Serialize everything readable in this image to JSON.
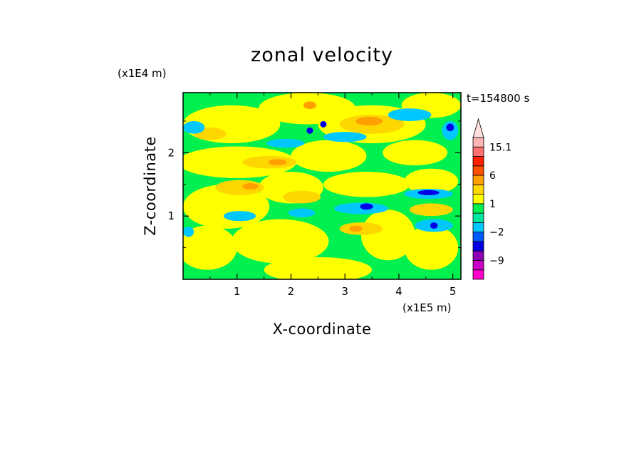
{
  "chart_data": {
    "type": "heatmap",
    "title": "zonal velocity",
    "xlabel": "X-coordinate",
    "ylabel": "Z-coordinate",
    "x_unit": "(x1E5 m)",
    "y_unit": "(x1E4 m)",
    "time_label": "t=154800 s",
    "xlim": [
      0,
      5.15
    ],
    "ylim": [
      0,
      2.95
    ],
    "x_ticks": [
      1,
      2,
      3,
      4,
      5
    ],
    "x_tick_labels": [
      "1",
      "2",
      "3",
      "4",
      "5"
    ],
    "y_ticks": [
      1,
      2
    ],
    "y_tick_labels": [
      "1",
      "2"
    ],
    "colorbar": {
      "levels": [
        -15.1,
        -12,
        -9,
        -6,
        -4,
        -2,
        -1,
        0,
        1,
        2,
        4,
        6,
        9,
        12,
        15.1
      ],
      "colors": [
        "#ff00c8",
        "#c800c8",
        "#8c00b4",
        "#0000e6",
        "#0058ff",
        "#00c8ff",
        "#00e6a0",
        "#00f050",
        "#ffff00",
        "#ffd700",
        "#ffa000",
        "#ff5000",
        "#ff2000",
        "#ff7070",
        "#ffb4b4",
        "#ffe0e0"
      ],
      "tick_labels": [
        {
          "value": 15.1,
          "label": "15.1"
        },
        {
          "value": 6,
          "label": "6"
        },
        {
          "value": 1,
          "label": "1"
        },
        {
          "value": -2,
          "label": "−2"
        },
        {
          "value": -9,
          "label": "−9"
        }
      ],
      "extend_max": true
    },
    "background_color": "#00f050",
    "regions": [
      {
        "level": "yellow",
        "x": 0.45,
        "z": 0.5,
        "rx": 0.55,
        "rz": 0.35,
        "color": "#ffff00"
      },
      {
        "level": "yellow",
        "x": 1.8,
        "z": 0.6,
        "rx": 0.9,
        "rz": 0.35,
        "color": "#ffff00"
      },
      {
        "level": "yellow",
        "x": 2.5,
        "z": 0.15,
        "rx": 1.0,
        "rz": 0.2,
        "color": "#ffff00"
      },
      {
        "level": "yellow",
        "x": 3.8,
        "z": 0.7,
        "rx": 0.5,
        "rz": 0.4,
        "color": "#ffff00"
      },
      {
        "level": "yellow",
        "x": 4.6,
        "z": 0.5,
        "rx": 0.5,
        "rz": 0.35,
        "color": "#ffff00"
      },
      {
        "level": "yellow",
        "x": 0.8,
        "z": 1.15,
        "rx": 0.8,
        "rz": 0.35,
        "color": "#ffff00"
      },
      {
        "level": "yellow",
        "x": 2.0,
        "z": 1.45,
        "rx": 0.6,
        "rz": 0.25,
        "color": "#ffff00"
      },
      {
        "level": "yellow",
        "x": 3.4,
        "z": 1.5,
        "rx": 0.8,
        "rz": 0.2,
        "color": "#ffff00"
      },
      {
        "level": "yellow",
        "x": 4.6,
        "z": 1.55,
        "rx": 0.5,
        "rz": 0.2,
        "color": "#ffff00"
      },
      {
        "level": "yellow",
        "x": 1.0,
        "z": 1.85,
        "rx": 1.1,
        "rz": 0.25,
        "color": "#ffff00"
      },
      {
        "level": "yellow",
        "x": 2.7,
        "z": 1.95,
        "rx": 0.7,
        "rz": 0.25,
        "color": "#ffff00"
      },
      {
        "level": "yellow",
        "x": 4.3,
        "z": 2.0,
        "rx": 0.6,
        "rz": 0.2,
        "color": "#ffff00"
      },
      {
        "level": "yellow",
        "x": 0.9,
        "z": 2.45,
        "rx": 0.9,
        "rz": 0.3,
        "color": "#ffff00"
      },
      {
        "level": "yellow",
        "x": 2.3,
        "z": 2.7,
        "rx": 0.9,
        "rz": 0.25,
        "color": "#ffff00"
      },
      {
        "level": "yellow",
        "x": 3.5,
        "z": 2.45,
        "rx": 1.0,
        "rz": 0.3,
        "color": "#ffff00"
      },
      {
        "level": "yellow",
        "x": 4.6,
        "z": 2.75,
        "rx": 0.55,
        "rz": 0.2,
        "color": "#ffff00"
      },
      {
        "level": "gold",
        "x": 1.05,
        "z": 1.45,
        "rx": 0.45,
        "rz": 0.12,
        "color": "#ffd700"
      },
      {
        "level": "gold",
        "x": 1.6,
        "z": 1.85,
        "rx": 0.5,
        "rz": 0.1,
        "color": "#ffd700"
      },
      {
        "level": "gold",
        "x": 3.3,
        "z": 0.8,
        "rx": 0.4,
        "rz": 0.1,
        "color": "#ffd700"
      },
      {
        "level": "gold",
        "x": 3.5,
        "z": 2.45,
        "rx": 0.6,
        "rz": 0.15,
        "color": "#ffd700"
      },
      {
        "level": "gold",
        "x": 2.2,
        "z": 1.3,
        "rx": 0.35,
        "rz": 0.1,
        "color": "#ffd700"
      },
      {
        "level": "gold",
        "x": 0.5,
        "z": 2.3,
        "rx": 0.3,
        "rz": 0.1,
        "color": "#ffd700"
      },
      {
        "level": "gold",
        "x": 4.6,
        "z": 1.1,
        "rx": 0.4,
        "rz": 0.1,
        "color": "#ffd700"
      },
      {
        "level": "orange",
        "x": 1.25,
        "z": 1.47,
        "rx": 0.15,
        "rz": 0.05,
        "color": "#ffa000"
      },
      {
        "level": "orange",
        "x": 1.75,
        "z": 1.85,
        "rx": 0.17,
        "rz": 0.05,
        "color": "#ffa000"
      },
      {
        "level": "orange",
        "x": 3.45,
        "z": 2.5,
        "rx": 0.25,
        "rz": 0.07,
        "color": "#ffa000"
      },
      {
        "level": "orange",
        "x": 2.35,
        "z": 2.75,
        "rx": 0.12,
        "rz": 0.06,
        "color": "#ffa000"
      },
      {
        "level": "orange",
        "x": 3.2,
        "z": 0.8,
        "rx": 0.12,
        "rz": 0.05,
        "color": "#ffa000"
      },
      {
        "level": "cyan",
        "x": 3.3,
        "z": 1.12,
        "rx": 0.5,
        "rz": 0.09,
        "color": "#00c8ff"
      },
      {
        "level": "cyan",
        "x": 4.55,
        "z": 1.35,
        "rx": 0.45,
        "rz": 0.08,
        "color": "#00c8ff"
      },
      {
        "level": "cyan",
        "x": 4.65,
        "z": 0.85,
        "rx": 0.35,
        "rz": 0.1,
        "color": "#00c8ff"
      },
      {
        "level": "cyan",
        "x": 1.05,
        "z": 1.0,
        "rx": 0.3,
        "rz": 0.08,
        "color": "#00c8ff"
      },
      {
        "level": "cyan",
        "x": 2.2,
        "z": 1.05,
        "rx": 0.25,
        "rz": 0.07,
        "color": "#00c8ff"
      },
      {
        "level": "cyan",
        "x": 0.2,
        "z": 2.4,
        "rx": 0.2,
        "rz": 0.1,
        "color": "#00c8ff"
      },
      {
        "level": "cyan",
        "x": 4.2,
        "z": 2.6,
        "rx": 0.4,
        "rz": 0.1,
        "color": "#00c8ff"
      },
      {
        "level": "cyan",
        "x": 4.95,
        "z": 2.35,
        "rx": 0.15,
        "rz": 0.15,
        "color": "#00c8ff"
      },
      {
        "level": "cyan",
        "x": 1.9,
        "z": 2.15,
        "rx": 0.35,
        "rz": 0.07,
        "color": "#00c8ff"
      },
      {
        "level": "cyan",
        "x": 3.0,
        "z": 2.25,
        "rx": 0.4,
        "rz": 0.08,
        "color": "#00c8ff"
      },
      {
        "level": "cyan",
        "x": 0.1,
        "z": 0.75,
        "rx": 0.1,
        "rz": 0.08,
        "color": "#00c8ff"
      },
      {
        "level": "blue",
        "x": 3.4,
        "z": 1.15,
        "rx": 0.12,
        "rz": 0.05,
        "color": "#0000e6"
      },
      {
        "level": "blue",
        "x": 4.55,
        "z": 1.37,
        "rx": 0.2,
        "rz": 0.04,
        "color": "#0000e6"
      },
      {
        "level": "blue",
        "x": 4.65,
        "z": 0.85,
        "rx": 0.07,
        "rz": 0.05,
        "color": "#0000e6"
      },
      {
        "level": "blue",
        "x": 2.35,
        "z": 2.35,
        "rx": 0.06,
        "rz": 0.05,
        "color": "#0000e6"
      },
      {
        "level": "blue",
        "x": 2.6,
        "z": 2.45,
        "rx": 0.06,
        "rz": 0.05,
        "color": "#0000e6"
      },
      {
        "level": "blue",
        "x": 4.95,
        "z": 2.4,
        "rx": 0.07,
        "rz": 0.06,
        "color": "#0000e6"
      }
    ]
  }
}
